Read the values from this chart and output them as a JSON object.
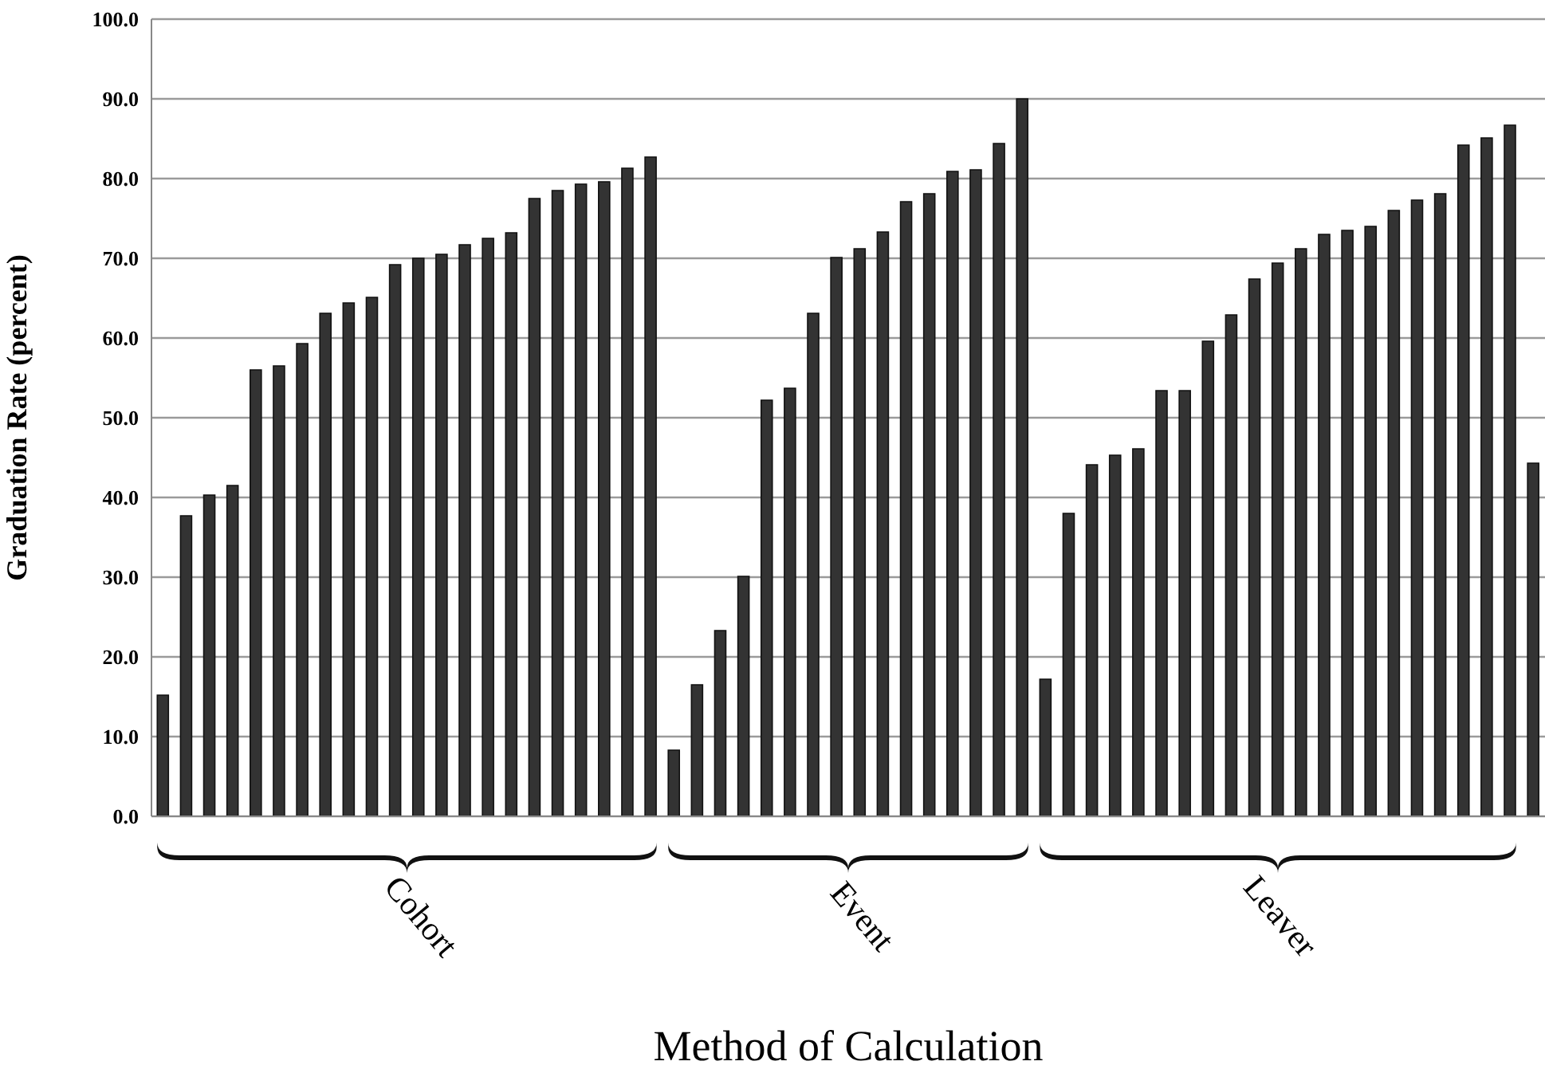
{
  "chart_data": {
    "type": "bar",
    "ylabel": "Graduation Rate (percent)",
    "xlabel": "Method of Calculation",
    "categories": [
      null,
      null,
      null,
      null,
      null,
      null,
      null,
      null,
      null,
      null,
      null,
      "Cohort",
      null,
      null,
      null,
      null,
      null,
      null,
      null,
      null,
      null,
      null,
      null,
      null,
      null,
      null,
      null,
      null,
      null,
      null,
      "Event",
      null,
      null,
      null,
      null,
      null,
      null,
      null,
      null,
      null,
      null,
      null,
      null,
      null,
      null,
      null,
      null,
      null,
      "Leaver",
      null,
      null,
      null,
      null,
      null,
      null,
      null,
      null,
      null,
      null,
      null
    ],
    "values": [
      15.2,
      37.7,
      40.3,
      41.5,
      56.0,
      56.5,
      59.3,
      63.1,
      64.4,
      65.1,
      69.2,
      70.0,
      70.5,
      71.7,
      72.5,
      73.2,
      77.5,
      78.5,
      79.3,
      79.6,
      81.3,
      82.7,
      8.3,
      16.5,
      23.3,
      30.1,
      52.2,
      53.7,
      63.1,
      70.1,
      71.2,
      73.3,
      77.1,
      78.1,
      80.9,
      81.1,
      84.4,
      90.0,
      17.2,
      38.0,
      44.1,
      45.3,
      46.1,
      53.4,
      53.4,
      59.6,
      62.9,
      67.4,
      69.4,
      71.2,
      73.0,
      73.5,
      74.0,
      76.0,
      77.3,
      78.1,
      84.2,
      85.1,
      86.7,
      44.3
    ],
    "color": "#333333",
    "ylim": [
      0,
      100
    ],
    "yticks": [
      {
        "value": 0,
        "label": "0.0"
      },
      {
        "value": 10,
        "label": "10.0"
      },
      {
        "value": 20,
        "label": "20.0"
      },
      {
        "value": 30,
        "label": "30.0"
      },
      {
        "value": 40,
        "label": "40.0"
      },
      {
        "value": 50,
        "label": "50.0"
      },
      {
        "value": 60,
        "label": "60.0"
      },
      {
        "value": 70,
        "label": "70.0"
      },
      {
        "value": 80,
        "label": "80.0"
      },
      {
        "value": 90,
        "label": "90.0"
      },
      {
        "value": 100,
        "label": "100.0"
      }
    ],
    "grid": "y",
    "legend": false
  }
}
